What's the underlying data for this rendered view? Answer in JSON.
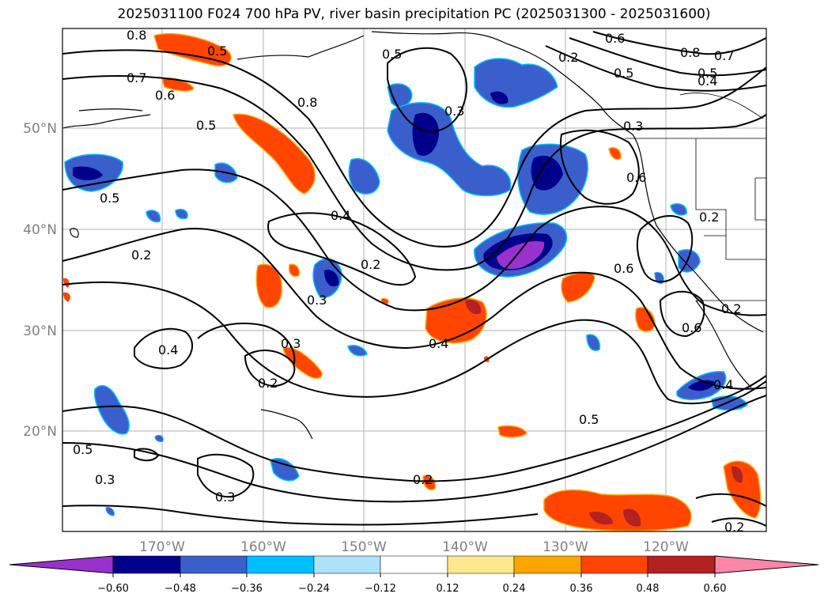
{
  "title": "2025031100 F024 700 hPa PV, river basin precipitation PC (2025031300 - 2025031600)",
  "map": {
    "lat_labels": [
      "50°N",
      "40°N",
      "30°N",
      "20°N"
    ],
    "lon_labels": [
      "170°W",
      "160°W",
      "150°W",
      "140°W",
      "130°W",
      "120°W"
    ],
    "contour_labels": [
      "0.8",
      "0.5",
      "0.7",
      "0.6",
      "0.5",
      "0.5",
      "0.8",
      "0.3",
      "0.2",
      "0.6",
      "0.5",
      "0.8",
      "0.7",
      "0.5",
      "0.4",
      "0.3",
      "0.6",
      "0.5",
      "0.4",
      "0.2",
      "0.2",
      "0.2",
      "0.4",
      "0.2",
      "0.3",
      "0.6",
      "0.3",
      "0.4",
      "0.6",
      "0.2",
      "0.4",
      "0.5",
      "0.5",
      "0.3",
      "0.3",
      "0.2",
      "0.2"
    ]
  },
  "colorbar": {
    "ticks": [
      "−0.60",
      "−0.48",
      "−0.36",
      "−0.24",
      "−0.12",
      "0.12",
      "0.24",
      "0.36",
      "0.48",
      "0.60"
    ],
    "colors": [
      "#9932CC",
      "#00008B",
      "#3A5FCD",
      "#00BFFF",
      "#ADE2FA",
      "#FFFFFF",
      "#FDE98C",
      "#FFA500",
      "#FF4500",
      "#B22222",
      "#FF85A9"
    ]
  },
  "colors": {
    "contour": "#000000",
    "grid": "#b0b0b0",
    "coast": "#000000"
  }
}
